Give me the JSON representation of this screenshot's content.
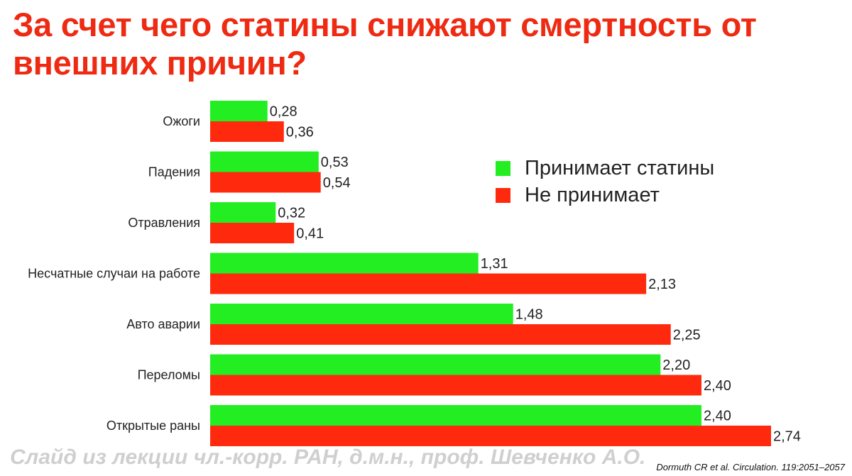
{
  "title": "За счет чего статины снижают смертность от внешних причин?",
  "chart_data": {
    "type": "bar",
    "orientation": "horizontal",
    "categories": [
      "Ожоги",
      "Падения",
      "Отравления",
      "Несчатные случаи на работе",
      "Авто аварии",
      "Переломы",
      "Открытые раны"
    ],
    "series": [
      {
        "name": "Принимает статины",
        "color": "#22ee22",
        "values": [
          0.28,
          0.53,
          0.32,
          1.31,
          1.48,
          2.2,
          2.4
        ],
        "labels": [
          "0,28",
          "0,53",
          "0,32",
          "1,31",
          "1,48",
          "2,20",
          "2,40"
        ]
      },
      {
        "name": "Не принимает",
        "color": "#ff2a0e",
        "values": [
          0.36,
          0.54,
          0.41,
          2.13,
          2.25,
          2.4,
          2.74
        ],
        "labels": [
          "0,36",
          "0,54",
          "0,41",
          "2,13",
          "2,25",
          "2,40",
          "2,74"
        ]
      }
    ],
    "xlim": [
      0,
      2.74
    ],
    "grid": false,
    "legend_position": "top-right"
  },
  "watermark": "Слайд из лекции чл.-корр. РАН, д.м.н., проф. Шевченко А.О.",
  "citation": "Dormuth CR et al. Circulation. 119:2051–2057"
}
